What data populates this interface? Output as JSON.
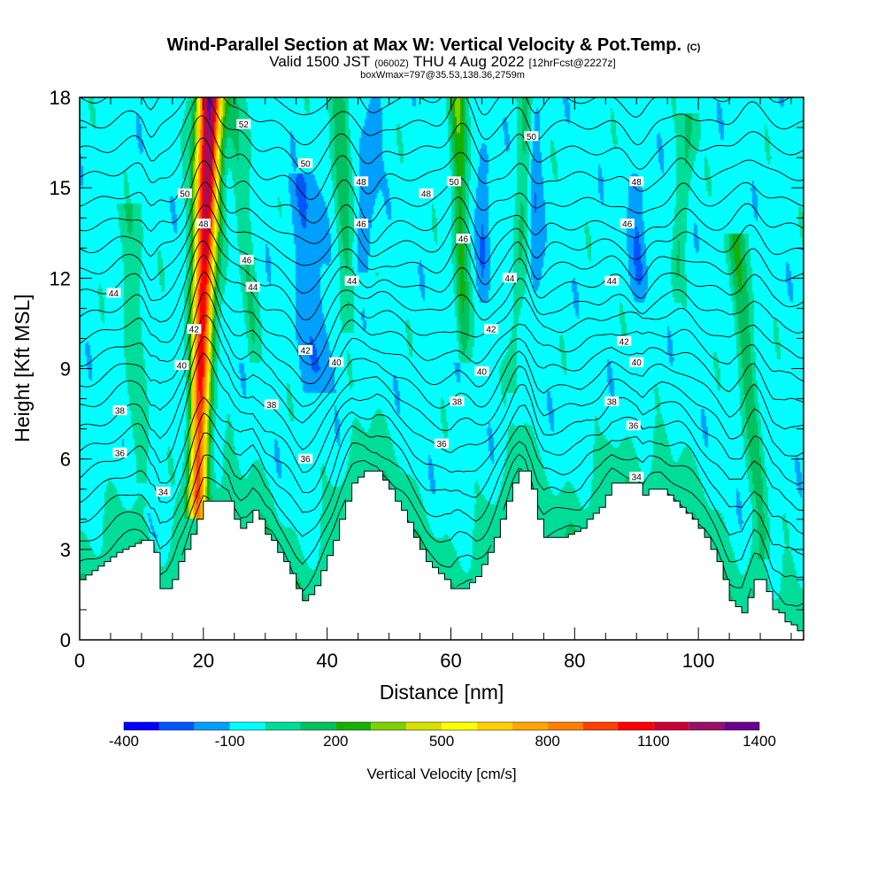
{
  "title": {
    "main": "Wind-Parallel Section at Max W: Vertical Velocity & Pot.Temp.",
    "copyright": "(C)",
    "valid_prefix": "Valid 1500 JST",
    "valid_utc": "(0600Z)",
    "valid_suffix": "THU 4 Aug 2022",
    "fcst": "[12hrFcst@2227z]",
    "boxw": "boxWmax=797@35.53,138.36,2759m"
  },
  "chart_data": {
    "type": "heatmap",
    "xlabel": "Distance [nm]",
    "ylabel": "Height [Kft MSL]",
    "xlim": [
      0,
      117
    ],
    "ylim": [
      0,
      18
    ],
    "x_ticks": [
      0,
      20,
      40,
      60,
      80,
      100
    ],
    "y_ticks": [
      0,
      3,
      6,
      9,
      12,
      15,
      18
    ],
    "terrain": {
      "x": [
        0,
        2,
        4,
        6,
        8,
        10,
        11,
        12,
        13,
        14,
        15,
        16,
        17,
        18,
        19,
        20,
        22,
        24,
        25,
        26,
        27,
        28,
        29,
        30,
        31,
        32,
        33,
        34,
        35,
        36,
        37,
        38,
        39,
        40,
        41,
        42,
        43,
        44,
        46,
        48,
        49,
        50,
        51,
        52,
        53,
        54,
        55,
        56,
        57,
        58,
        59,
        60,
        62,
        63,
        64,
        65,
        66,
        67,
        68,
        69,
        70,
        71,
        72,
        73,
        74,
        75,
        76,
        78,
        80,
        81,
        82,
        84,
        86,
        88,
        90,
        91,
        92,
        94,
        96,
        97,
        98,
        99,
        100,
        101,
        102,
        103,
        104,
        105,
        106,
        107,
        108,
        109,
        110,
        111,
        112,
        113,
        114,
        115,
        116,
        117
      ],
      "h": [
        2.0,
        2.3,
        2.6,
        2.9,
        3.1,
        3.3,
        3.3,
        2.9,
        1.7,
        1.7,
        2.0,
        2.6,
        3.0,
        3.5,
        4.0,
        4.6,
        4.6,
        4.6,
        4.0,
        3.7,
        3.9,
        4.3,
        4.0,
        3.5,
        3.3,
        2.9,
        2.6,
        2.2,
        1.7,
        1.3,
        1.5,
        1.8,
        2.3,
        2.8,
        3.3,
        4.0,
        4.6,
        5.2,
        5.6,
        5.6,
        5.3,
        5.0,
        4.6,
        4.3,
        3.9,
        3.4,
        3.0,
        2.6,
        2.4,
        2.2,
        2.0,
        1.7,
        1.7,
        1.9,
        2.1,
        2.5,
        2.9,
        3.4,
        4.0,
        4.6,
        5.2,
        5.6,
        5.6,
        5.0,
        4.0,
        3.4,
        3.4,
        3.4,
        3.6,
        3.7,
        4.0,
        4.4,
        5.2,
        5.2,
        5.2,
        4.8,
        5.0,
        5.0,
        4.6,
        4.4,
        4.2,
        4.0,
        3.7,
        3.4,
        3.0,
        2.6,
        2.0,
        1.3,
        1.1,
        0.9,
        1.4,
        2.0,
        2.0,
        1.6,
        1.0,
        0.9,
        0.6,
        0.5,
        0.3,
        0.3
      ]
    },
    "vertical_velocity": {
      "units": "cm/s",
      "background": -50,
      "plumes": [
        {
          "x0": 21.0,
          "y0": 18.0,
          "x1": 19.0,
          "y1": 4.8,
          "w": 2.2,
          "amp": 1400
        },
        {
          "x0": 24.5,
          "y0": 18.0,
          "x1": 28.0,
          "y1": 10.0,
          "w": 1.6,
          "amp": 190
        },
        {
          "x0": 42.0,
          "y0": 18.0,
          "x1": 43.5,
          "y1": 11.0,
          "w": 1.8,
          "amp": 220
        },
        {
          "x0": 61.0,
          "y0": 18.0,
          "x1": 62.0,
          "y1": 10.0,
          "w": 1.6,
          "amp": 330
        },
        {
          "x0": 72.5,
          "y0": 18.0,
          "x1": 70.0,
          "y1": 9.0,
          "w": 1.5,
          "amp": 170
        },
        {
          "x0": 98.5,
          "y0": 17.0,
          "x1": 96.5,
          "y1": 12.0,
          "w": 1.5,
          "amp": 170
        },
        {
          "x0": 106.0,
          "y0": 13.0,
          "x1": 110.5,
          "y1": 3.5,
          "w": 1.8,
          "amp": 240
        },
        {
          "x0": 8.0,
          "y0": 14.0,
          "x1": 10.0,
          "y1": 6.0,
          "w": 2.5,
          "amp": 120
        }
      ],
      "downdrafts": [
        {
          "x0": 36.0,
          "y0": 15.0,
          "x1": 38.5,
          "y1": 9.0,
          "w": 2.2,
          "amp": -160
        },
        {
          "x0": 47.5,
          "y0": 17.5,
          "x1": 46.0,
          "y1": 13.0,
          "w": 1.5,
          "amp": -140
        },
        {
          "x0": 65.5,
          "y0": 16.0,
          "x1": 65.0,
          "y1": 12.0,
          "w": 1.2,
          "amp": -110
        },
        {
          "x0": 73.5,
          "y0": 17.5,
          "x1": 73.5,
          "y1": 12.0,
          "w": 1.2,
          "amp": -120
        },
        {
          "x0": 90.0,
          "y0": 15.0,
          "x1": 90.5,
          "y1": 12.0,
          "w": 1.5,
          "amp": -130
        },
        {
          "x0": 11.0,
          "y0": 4.2,
          "x1": 12.0,
          "y1": 3.4,
          "w": 0.8,
          "amp": -120
        }
      ],
      "near_surface_band": 120
    },
    "potential_temperature": {
      "units": "C",
      "levels": [
        32,
        33,
        34,
        35,
        36,
        37,
        38,
        39,
        40,
        41,
        42,
        43,
        44,
        45,
        46,
        47,
        48,
        49,
        50,
        51,
        52,
        53
      ],
      "labels": [
        {
          "text": "52",
          "x": 26.5,
          "y": 17.1
        },
        {
          "text": "50",
          "x": 73.0,
          "y": 16.7
        },
        {
          "text": "50",
          "x": 36.5,
          "y": 15.8
        },
        {
          "text": "48",
          "x": 45.5,
          "y": 15.2
        },
        {
          "text": "50",
          "x": 17.0,
          "y": 14.8
        },
        {
          "text": "50",
          "x": 60.5,
          "y": 15.2
        },
        {
          "text": "48",
          "x": 56.0,
          "y": 14.8
        },
        {
          "text": "48",
          "x": 90.0,
          "y": 15.2
        },
        {
          "text": "48",
          "x": 20.0,
          "y": 13.8
        },
        {
          "text": "46",
          "x": 45.5,
          "y": 13.8
        },
        {
          "text": "46",
          "x": 62.0,
          "y": 13.3
        },
        {
          "text": "46",
          "x": 88.5,
          "y": 13.8
        },
        {
          "text": "46",
          "x": 27.0,
          "y": 12.6
        },
        {
          "text": "44",
          "x": 28.0,
          "y": 11.7
        },
        {
          "text": "44",
          "x": 44.0,
          "y": 11.9
        },
        {
          "text": "44",
          "x": 69.5,
          "y": 12.0
        },
        {
          "text": "44",
          "x": 86.0,
          "y": 11.9
        },
        {
          "text": "44",
          "x": 5.5,
          "y": 11.5
        },
        {
          "text": "42",
          "x": 18.5,
          "y": 10.3
        },
        {
          "text": "42",
          "x": 66.5,
          "y": 10.3
        },
        {
          "text": "42",
          "x": 88.0,
          "y": 9.9
        },
        {
          "text": "42",
          "x": 36.5,
          "y": 9.6
        },
        {
          "text": "40",
          "x": 16.5,
          "y": 9.1
        },
        {
          "text": "40",
          "x": 41.5,
          "y": 9.2
        },
        {
          "text": "40",
          "x": 65.0,
          "y": 8.9
        },
        {
          "text": "40",
          "x": 90.0,
          "y": 9.2
        },
        {
          "text": "38",
          "x": 6.5,
          "y": 7.6
        },
        {
          "text": "38",
          "x": 31.0,
          "y": 7.8
        },
        {
          "text": "38",
          "x": 61.0,
          "y": 7.9
        },
        {
          "text": "38",
          "x": 86.0,
          "y": 7.9
        },
        {
          "text": "36",
          "x": 6.5,
          "y": 6.2
        },
        {
          "text": "36",
          "x": 36.5,
          "y": 6.0
        },
        {
          "text": "36",
          "x": 58.5,
          "y": 6.5
        },
        {
          "text": "36",
          "x": 89.5,
          "y": 7.1
        },
        {
          "text": "34",
          "x": 13.5,
          "y": 4.9
        },
        {
          "text": "34",
          "x": 90.0,
          "y": 5.4
        }
      ]
    },
    "colorbar": {
      "title": "Vertical Velocity [cm/s]",
      "bounds": [
        -400,
        -300,
        -200,
        -100,
        0,
        100,
        200,
        300,
        400,
        500,
        600,
        700,
        800,
        900,
        1000,
        1100,
        1200,
        1300,
        1400
      ],
      "colors": [
        "#0000ff",
        "#0055ff",
        "#00a0ff",
        "#00ffff",
        "#00dd99",
        "#00c060",
        "#16b000",
        "#80d000",
        "#d8e000",
        "#ffff00",
        "#ffd000",
        "#ffa800",
        "#ff7f00",
        "#ff4000",
        "#ff0000",
        "#cc0033",
        "#991066",
        "#6a0090"
      ],
      "tick_labels": [
        {
          "value": -400,
          "text": "-400"
        },
        {
          "value": -100,
          "text": "-100"
        },
        {
          "value": 200,
          "text": "200"
        },
        {
          "value": 500,
          "text": "500"
        },
        {
          "value": 800,
          "text": "800"
        },
        {
          "value": 1100,
          "text": "1100"
        },
        {
          "value": 1400,
          "text": "1400"
        }
      ]
    }
  }
}
